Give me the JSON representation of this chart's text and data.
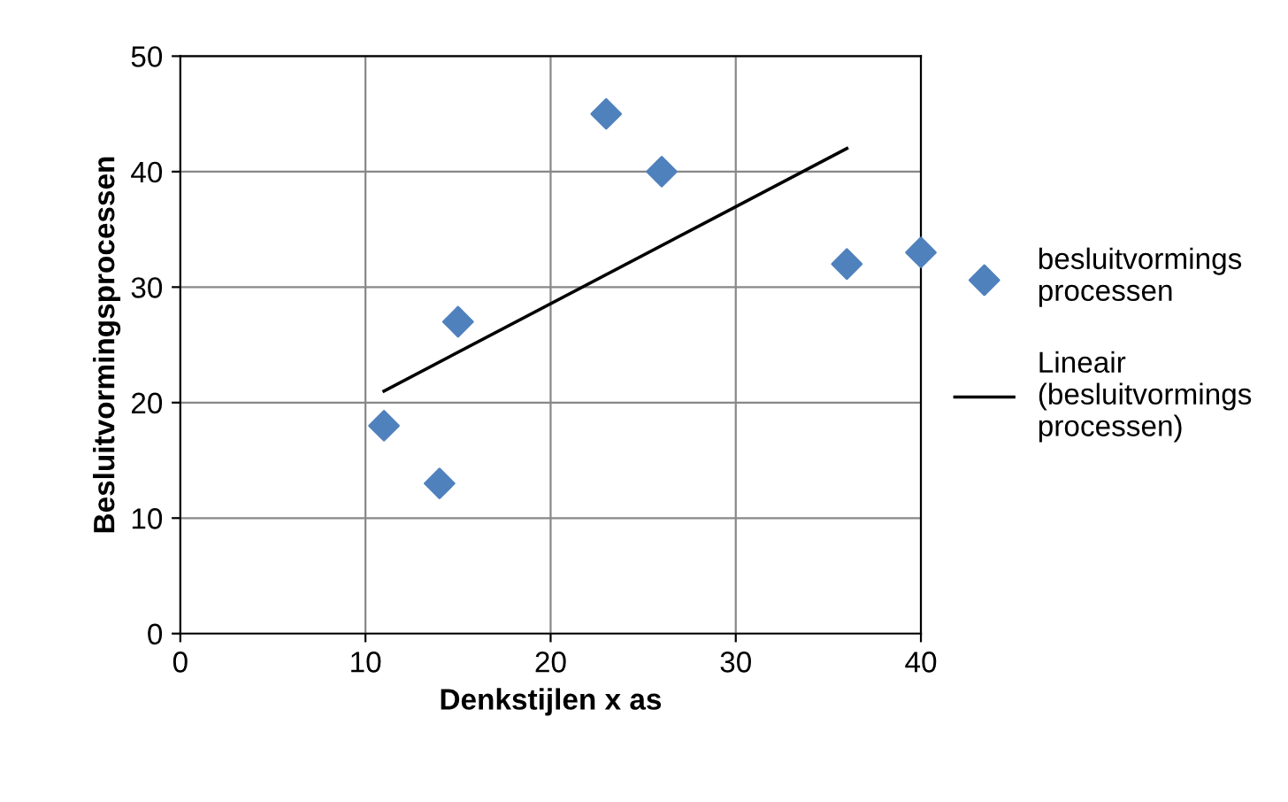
{
  "chart_data": {
    "type": "scatter",
    "xlabel": "Denkstijlen x as",
    "ylabel": "Besluitvormingsprocessen",
    "xlim": [
      0,
      40
    ],
    "ylim": [
      0,
      50
    ],
    "xticks": [
      0,
      10,
      20,
      30,
      40
    ],
    "yticks": [
      0,
      10,
      20,
      30,
      40,
      50
    ],
    "grid": true,
    "legend": "right",
    "series": [
      {
        "name": "besluitvormings\nprocessen",
        "color": "#4f81bd",
        "marker": "diamond",
        "x": [
          11,
          14,
          15,
          23,
          26,
          36,
          40
        ],
        "values": [
          18,
          13,
          27,
          45,
          40,
          32,
          33
        ]
      },
      {
        "name": "Lineair\n(besluitvormings\nprocessen)",
        "type": "line",
        "marker": "none",
        "color": "#000000",
        "x": [
          11,
          36
        ],
        "values": [
          21,
          42
        ]
      }
    ]
  }
}
